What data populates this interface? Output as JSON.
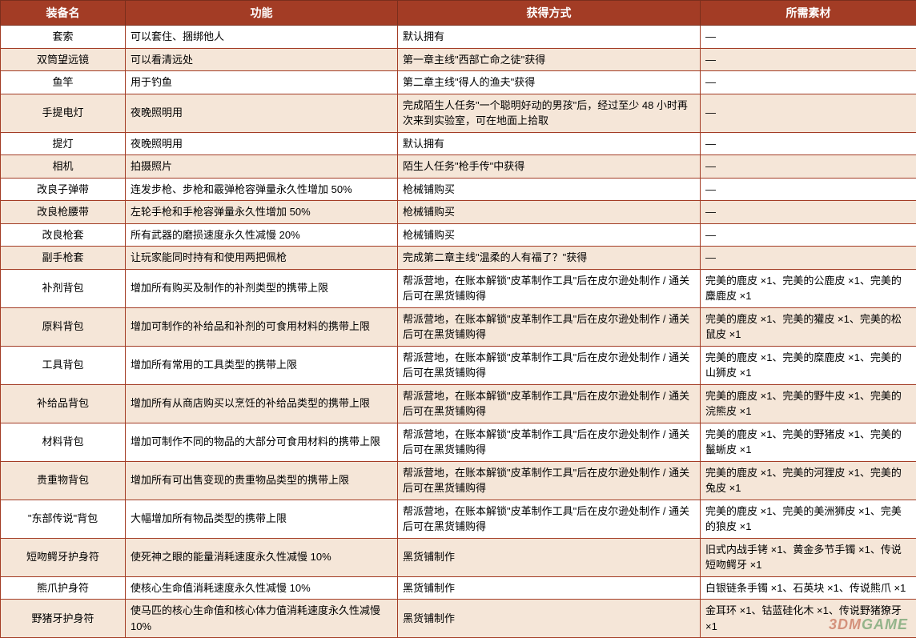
{
  "columns": [
    "装备名",
    "功能",
    "获得方式",
    "所需素材"
  ],
  "rows": [
    {
      "alt": false,
      "name": "套索",
      "func": "可以套住、捆绑他人",
      "obtain": "默认拥有",
      "mat": "—"
    },
    {
      "alt": true,
      "name": "双筒望远镜",
      "func": "可以看清远处",
      "obtain": "第一章主线\"西部亡命之徒\"获得",
      "mat": "—"
    },
    {
      "alt": false,
      "name": "鱼竿",
      "func": "用于钓鱼",
      "obtain": "第二章主线\"得人的渔夫\"获得",
      "mat": "—"
    },
    {
      "alt": true,
      "name": "手提电灯",
      "func": "夜晚照明用",
      "obtain": "完成陌生人任务\"一个聪明好动的男孩\"后，经过至少 48 小时再次来到实验室，可在地面上拾取",
      "mat": "—"
    },
    {
      "alt": false,
      "name": "提灯",
      "func": "夜晚照明用",
      "obtain": "默认拥有",
      "mat": "—"
    },
    {
      "alt": true,
      "name": "相机",
      "func": "拍摄照片",
      "obtain": "陌生人任务\"枪手传\"中获得",
      "mat": "—"
    },
    {
      "alt": false,
      "name": "改良子弹带",
      "func": "连发步枪、步枪和霰弹枪容弹量永久性增加 50%",
      "obtain": "枪械铺购买",
      "mat": "—"
    },
    {
      "alt": true,
      "name": "改良枪腰带",
      "func": "左轮手枪和手枪容弹量永久性增加 50%",
      "obtain": "枪械铺购买",
      "mat": "—"
    },
    {
      "alt": false,
      "name": "改良枪套",
      "func": "所有武器的磨损速度永久性减慢 20%",
      "obtain": "枪械铺购买",
      "mat": "—"
    },
    {
      "alt": true,
      "name": "副手枪套",
      "func": "让玩家能同时持有和使用两把佩枪",
      "obtain": "完成第二章主线\"温柔的人有福了？\"获得",
      "mat": "—"
    },
    {
      "alt": false,
      "name": "补剂背包",
      "func": "增加所有购买及制作的补剂类型的携带上限",
      "obtain": "帮派营地，在账本解锁\"皮革制作工具\"后在皮尔逊处制作 / 通关后可在黑货铺购得",
      "mat": "完美的鹿皮 ×1、完美的公鹿皮 ×1、完美的麋鹿皮 ×1"
    },
    {
      "alt": true,
      "name": "原料背包",
      "func": "增加可制作的补给品和补剂的可食用材料的携带上限",
      "obtain": "帮派营地，在账本解锁\"皮革制作工具\"后在皮尔逊处制作 / 通关后可在黑货铺购得",
      "mat": "完美的鹿皮 ×1、完美的獾皮 ×1、完美的松鼠皮 ×1"
    },
    {
      "alt": false,
      "name": "工具背包",
      "func": "增加所有常用的工具类型的携带上限",
      "obtain": "帮派营地，在账本解锁\"皮革制作工具\"后在皮尔逊处制作 / 通关后可在黑货铺购得",
      "mat": "完美的鹿皮 ×1、完美的糜鹿皮 ×1、完美的山狮皮 ×1"
    },
    {
      "alt": true,
      "name": "补给品背包",
      "func": "增加所有从商店购买以烹饪的补给品类型的携带上限",
      "obtain": "帮派营地，在账本解锁\"皮革制作工具\"后在皮尔逊处制作 / 通关后可在黑货铺购得",
      "mat": "完美的鹿皮 ×1、完美的野牛皮 ×1、完美的浣熊皮 ×1"
    },
    {
      "alt": false,
      "name": "材料背包",
      "func": "增加可制作不同的物品的大部分可食用材料的携带上限",
      "obtain": "帮派营地，在账本解锁\"皮革制作工具\"后在皮尔逊处制作 / 通关后可在黑货铺购得",
      "mat": "完美的鹿皮 ×1、完美的野猪皮 ×1、完美的鬣蜥皮 ×1"
    },
    {
      "alt": true,
      "name": "贵重物背包",
      "func": "增加所有可出售变现的贵重物品类型的携带上限",
      "obtain": "帮派营地，在账本解锁\"皮革制作工具\"后在皮尔逊处制作 / 通关后可在黑货铺购得",
      "mat": "完美的鹿皮 ×1、完美的河狸皮 ×1、完美的兔皮 ×1"
    },
    {
      "alt": false,
      "name": "\"东部传说\"背包",
      "func": "大幅增加所有物品类型的携带上限",
      "obtain": "帮派营地，在账本解锁\"皮革制作工具\"后在皮尔逊处制作 / 通关后可在黑货铺购得",
      "mat": "完美的鹿皮 ×1、完美的美洲狮皮 ×1、完美的狼皮 ×1"
    },
    {
      "alt": true,
      "name": "短吻鳄牙护身符",
      "func": "使死神之眼的能量消耗速度永久性减慢 10%",
      "obtain": "黑货铺制作",
      "mat": "旧式内战手铐 ×1、黄金多节手镯 ×1、传说短吻鳄牙 ×1"
    },
    {
      "alt": false,
      "name": "熊爪护身符",
      "func": "使核心生命值消耗速度永久性减慢 10%",
      "obtain": "黑货铺制作",
      "mat": "白银链条手镯 ×1、石英块 ×1、传说熊爪 ×1"
    },
    {
      "alt": true,
      "name": "野猪牙护身符",
      "func": "使马匹的核心生命值和核心体力值消耗速度永久性减慢 10%",
      "obtain": "黑货铺制作",
      "mat": "金耳环 ×1、钴蓝硅化木 ×1、传说野猪獠牙 ×1"
    }
  ],
  "watermark": {
    "prefix": "3DM",
    "suffix": "GAME"
  },
  "colors": {
    "header_bg": "#a33c25",
    "header_text": "#ffffff",
    "border": "#a33c25",
    "alt_row": "#f5e6d8",
    "normal_row": "#ffffff"
  }
}
